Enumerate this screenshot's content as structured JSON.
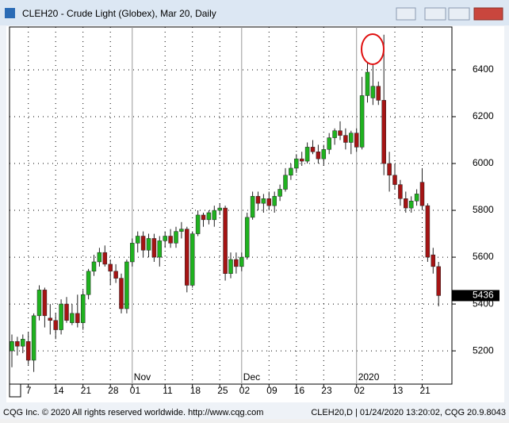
{
  "window": {
    "title": "CLEH20 - Crude Light (Globex), Mar 20, Daily",
    "footer_left": "CQG Inc. © 2020 All rights reserved worldwide. http://www.cqg.com",
    "footer_right": "CLEH20,D | 01/24/2020 13:20:02, CQG 20.9.8043"
  },
  "chart_data": {
    "type": "candlestick",
    "categories": [
      null,
      null,
      null,
      "7",
      null,
      null,
      null,
      null,
      "14",
      null,
      null,
      null,
      null,
      "21",
      null,
      null,
      null,
      null,
      "28",
      null,
      null,
      null,
      "01",
      null,
      null,
      null,
      null,
      null,
      "11",
      null,
      null,
      null,
      null,
      "18",
      null,
      null,
      null,
      null,
      "25",
      null,
      null,
      null,
      "02",
      null,
      null,
      null,
      null,
      "09",
      null,
      null,
      null,
      null,
      "16",
      null,
      null,
      null,
      null,
      "23",
      null,
      null,
      null,
      null,
      null,
      "02",
      null,
      null,
      null,
      null,
      null,
      null,
      "13",
      null,
      null,
      null,
      null,
      "21",
      null,
      null,
      null
    ],
    "period_labels": [
      {
        "at": 22,
        "label": "Nov"
      },
      {
        "at": 42,
        "label": "Dec"
      },
      {
        "at": 63,
        "label": "2020"
      }
    ],
    "ohlc": [
      [
        5200,
        5270,
        5130,
        5240
      ],
      [
        5240,
        5260,
        5180,
        5220
      ],
      [
        5220,
        5270,
        5190,
        5250
      ],
      [
        5240,
        5280,
        5140,
        5160
      ],
      [
        5160,
        5360,
        5110,
        5350
      ],
      [
        5350,
        5480,
        5330,
        5460
      ],
      [
        5460,
        5470,
        5300,
        5350
      ],
      [
        5340,
        5400,
        5270,
        5330
      ],
      [
        5330,
        5360,
        5250,
        5290
      ],
      [
        5290,
        5420,
        5270,
        5400
      ],
      [
        5400,
        5430,
        5320,
        5330
      ],
      [
        5320,
        5400,
        5310,
        5360
      ],
      [
        5360,
        5440,
        5300,
        5320
      ],
      [
        5320,
        5460,
        5290,
        5440
      ],
      [
        5440,
        5550,
        5420,
        5540
      ],
      [
        5540,
        5610,
        5520,
        5580
      ],
      [
        5580,
        5640,
        5560,
        5620
      ],
      [
        5620,
        5650,
        5560,
        5570
      ],
      [
        5570,
        5590,
        5480,
        5540
      ],
      [
        5540,
        5570,
        5490,
        5510
      ],
      [
        5510,
        5530,
        5360,
        5380
      ],
      [
        5380,
        5590,
        5360,
        5580
      ],
      [
        5580,
        5680,
        5560,
        5660
      ],
      [
        5660,
        5710,
        5620,
        5690
      ],
      [
        5690,
        5710,
        5600,
        5630
      ],
      [
        5630,
        5700,
        5600,
        5680
      ],
      [
        5680,
        5700,
        5580,
        5600
      ],
      [
        5600,
        5690,
        5560,
        5670
      ],
      [
        5670,
        5710,
        5640,
        5690
      ],
      [
        5690,
        5720,
        5640,
        5660
      ],
      [
        5660,
        5730,
        5640,
        5710
      ],
      [
        5710,
        5750,
        5680,
        5720
      ],
      [
        5720,
        5730,
        5450,
        5480
      ],
      [
        5480,
        5710,
        5470,
        5700
      ],
      [
        5700,
        5800,
        5690,
        5780
      ],
      [
        5780,
        5790,
        5730,
        5760
      ],
      [
        5760,
        5800,
        5740,
        5790
      ],
      [
        5760,
        5820,
        5730,
        5800
      ],
      [
        5800,
        5830,
        5780,
        5810
      ],
      [
        5810,
        5820,
        5500,
        5530
      ],
      [
        5530,
        5620,
        5510,
        5590
      ],
      [
        5590,
        5620,
        5530,
        5560
      ],
      [
        5560,
        5620,
        5540,
        5600
      ],
      [
        5600,
        5790,
        5590,
        5770
      ],
      [
        5770,
        5880,
        5760,
        5860
      ],
      [
        5860,
        5880,
        5800,
        5830
      ],
      [
        5830,
        5870,
        5790,
        5850
      ],
      [
        5850,
        5880,
        5800,
        5820
      ],
      [
        5820,
        5880,
        5790,
        5860
      ],
      [
        5860,
        5910,
        5840,
        5890
      ],
      [
        5890,
        5980,
        5880,
        5950
      ],
      [
        5950,
        6000,
        5930,
        5980
      ],
      [
        5980,
        6040,
        5960,
        6020
      ],
      [
        6020,
        6050,
        5990,
        6010
      ],
      [
        6010,
        6090,
        6000,
        6070
      ],
      [
        6070,
        6100,
        6040,
        6050
      ],
      [
        6050,
        6080,
        6000,
        6020
      ],
      [
        6020,
        6080,
        5990,
        6060
      ],
      [
        6060,
        6130,
        6040,
        6110
      ],
      [
        6110,
        6150,
        6080,
        6140
      ],
      [
        6140,
        6180,
        6100,
        6120
      ],
      [
        6120,
        6150,
        6060,
        6090
      ],
      [
        6090,
        6140,
        6040,
        6130
      ],
      [
        6130,
        6150,
        6050,
        6070
      ],
      [
        6070,
        6370,
        6060,
        6290
      ],
      [
        6290,
        6430,
        6260,
        6390
      ],
      [
        6280,
        6420,
        6250,
        6330
      ],
      [
        6330,
        6350,
        6250,
        6270
      ],
      [
        6270,
        6550,
        5950,
        6000
      ],
      [
        6000,
        6050,
        5880,
        5950
      ],
      [
        5950,
        6000,
        5890,
        5910
      ],
      [
        5910,
        5930,
        5820,
        5850
      ],
      [
        5850,
        5880,
        5790,
        5810
      ],
      [
        5810,
        5860,
        5790,
        5840
      ],
      [
        5840,
        5890,
        5820,
        5870
      ],
      [
        5920,
        5980,
        5800,
        5820
      ],
      [
        5820,
        5830,
        5580,
        5600
      ],
      [
        5610,
        5640,
        5530,
        5560
      ],
      [
        5560,
        5580,
        5390,
        5436
      ]
    ],
    "up_color": "#1fb21f",
    "down_color": "#a51414",
    "ylim": [
      5058,
      6583
    ],
    "yticks": [
      5200,
      5400,
      5600,
      5800,
      6000,
      6200,
      6400
    ],
    "grid": true,
    "last_price": 5436
  }
}
